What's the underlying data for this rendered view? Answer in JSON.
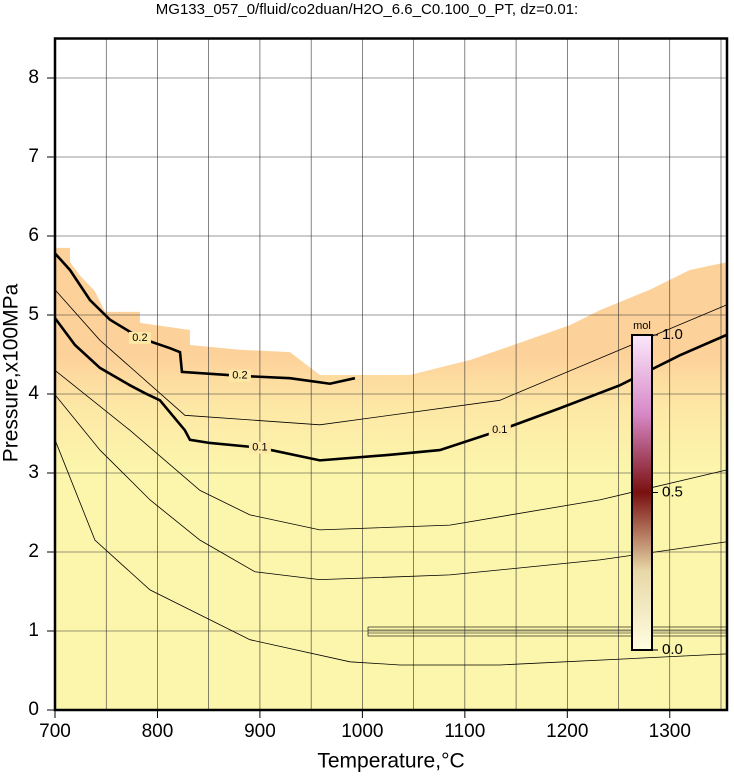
{
  "chart_data": {
    "type": "contour",
    "title": "MG133_057_0/fluid/co2duan/H2O_6.6_C0.100_0_PT, dz=0.01:",
    "x_label": "Temperature,°C",
    "y_label": "Pressure,x100MPa",
    "xlim": [
      700,
      1350
    ],
    "ylim": [
      0,
      8.5
    ],
    "xticks": [
      700,
      800,
      900,
      1000,
      1100,
      1200,
      1300
    ],
    "yticks": [
      0,
      1,
      2,
      3,
      4,
      5,
      6,
      7,
      8
    ],
    "xgrid": [
      700,
      750,
      800,
      850,
      900,
      950,
      1000,
      1050,
      1100,
      1150,
      1200,
      1250,
      1300,
      1350
    ],
    "grid": true,
    "field_boundary": {
      "x": [
        700,
        714.6,
        714.6,
        724.4,
        739,
        748.8,
        782.9,
        782.9,
        831.7,
        831.7,
        880.5,
        929.3,
        958.5,
        1046.3,
        1104.9,
        1134.1,
        1202.4,
        1231.7,
        1280.5,
        1319.5,
        1350
      ],
      "y": [
        5.85,
        5.85,
        5.67,
        5.5,
        5.3,
        5.04,
        5.04,
        4.9,
        4.81,
        4.62,
        4.56,
        4.53,
        4.24,
        4.24,
        4.43,
        4.56,
        4.87,
        5.06,
        5.32,
        5.57,
        5.67
      ]
    },
    "contours": [
      {
        "level": 0.2,
        "x": [
          700,
          714.6,
          734.1,
          753.7,
          782.9,
          812.2,
          822,
          823.9,
          880.5,
          929.3,
          968.3,
          992.7
        ],
        "y": [
          5.78,
          5.57,
          5.19,
          4.94,
          4.71,
          4.58,
          4.53,
          4.28,
          4.23,
          4.2,
          4.13,
          4.2
        ]
      },
      {
        "level": 0.1,
        "x": [
          700,
          719.5,
          743.9,
          773.2,
          787.8,
          802.4,
          826.8,
          831.7,
          851.2,
          900,
          958.5,
          1026.8,
          1075.6,
          1134.1,
          1192.7,
          1251.2,
          1309.8,
          1350
        ],
        "y": [
          4.96,
          4.62,
          4.33,
          4.11,
          4.01,
          3.92,
          3.54,
          3.42,
          3.38,
          3.32,
          3.16,
          3.23,
          3.29,
          3.54,
          3.82,
          4.11,
          4.49,
          4.75
        ]
      },
      {
        "x": [
          700,
          743.9,
          826.8,
          958.5,
          1134.1,
          1350
        ],
        "y": [
          5.32,
          4.68,
          3.73,
          3.61,
          3.92,
          5.13
        ]
      },
      {
        "x": [
          700,
          773.2,
          841.5,
          890.2,
          958.5,
          1085.4,
          1231.7,
          1350
        ],
        "y": [
          4.3,
          3.54,
          2.78,
          2.47,
          2.28,
          2.34,
          2.66,
          3.04
        ]
      },
      {
        "x": [
          700,
          743.9,
          792.7,
          841.5,
          895.1,
          958.5,
          1085.4,
          1231.7,
          1350
        ],
        "y": [
          3.99,
          3.29,
          2.66,
          2.15,
          1.75,
          1.65,
          1.71,
          1.9,
          2.13
        ]
      },
      {
        "x": [
          700,
          739,
          792.7,
          890.2,
          987.8,
          1036.6,
          1134.1,
          1350
        ],
        "y": [
          3.42,
          2.15,
          1.52,
          0.89,
          0.61,
          0.57,
          0.57,
          0.71
        ]
      }
    ],
    "colorbar": {
      "label": "mol",
      "clim": [
        0,
        1
      ],
      "ticks": [
        {
          "value": 0,
          "label": "0.0"
        },
        {
          "value": 0.5,
          "label": "0.5"
        },
        {
          "value": 1,
          "label": "1.0"
        }
      ]
    }
  }
}
